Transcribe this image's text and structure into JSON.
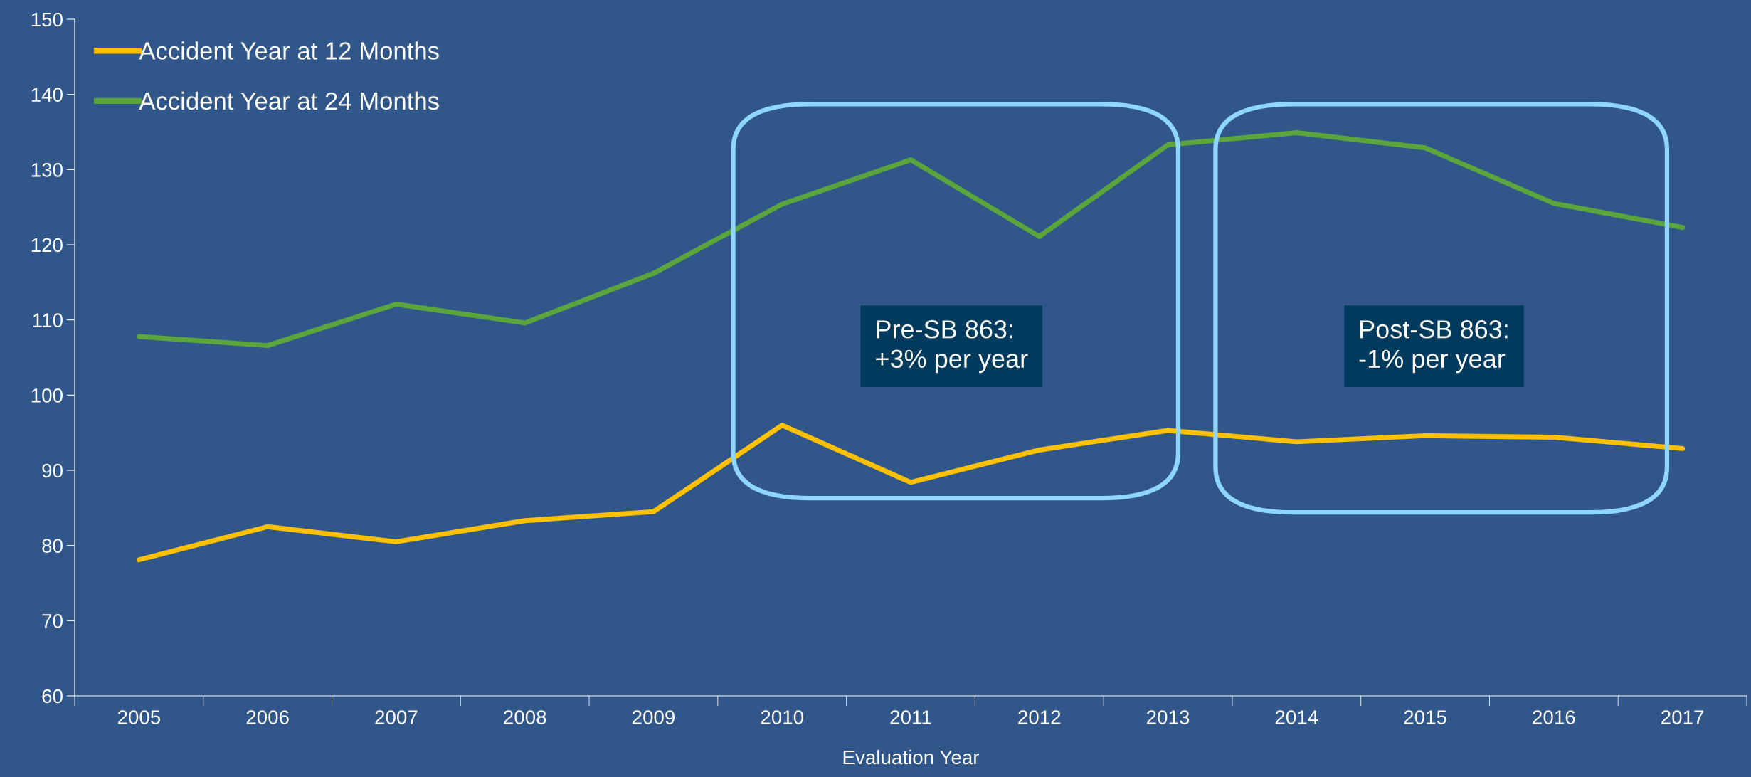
{
  "chart_data": {
    "type": "line",
    "xlabel": "Evaluation Year",
    "categories": [
      "2005",
      "2006",
      "2007",
      "2008",
      "2009",
      "2010",
      "2011",
      "2012",
      "2013",
      "2014",
      "2015",
      "2016",
      "2017"
    ],
    "series": [
      {
        "name": "Accident Year at 12 Months",
        "color": "#ffc000",
        "values": [
          78.1,
          82.5,
          80.5,
          83.3,
          84.5,
          96.0,
          88.4,
          92.7,
          95.3,
          93.8,
          94.6,
          94.4,
          92.9
        ]
      },
      {
        "name": "Accident Year at 24 Months",
        "color": "#5aa53c",
        "values": [
          107.8,
          106.6,
          112.1,
          109.6,
          116.2,
          125.4,
          131.3,
          121.1,
          133.3,
          134.9,
          132.9,
          125.5,
          122.3
        ]
      }
    ],
    "ylim": [
      60,
      150
    ],
    "yticks": [
      60,
      70,
      80,
      90,
      100,
      110,
      120,
      130,
      140,
      150
    ],
    "grid": false,
    "legend": "top left",
    "marker": "none",
    "line_style": "solid",
    "annotations": [
      "Pre-SB 863:\n+3% per year",
      "Post-SB 863:\n-1% per year"
    ]
  }
}
